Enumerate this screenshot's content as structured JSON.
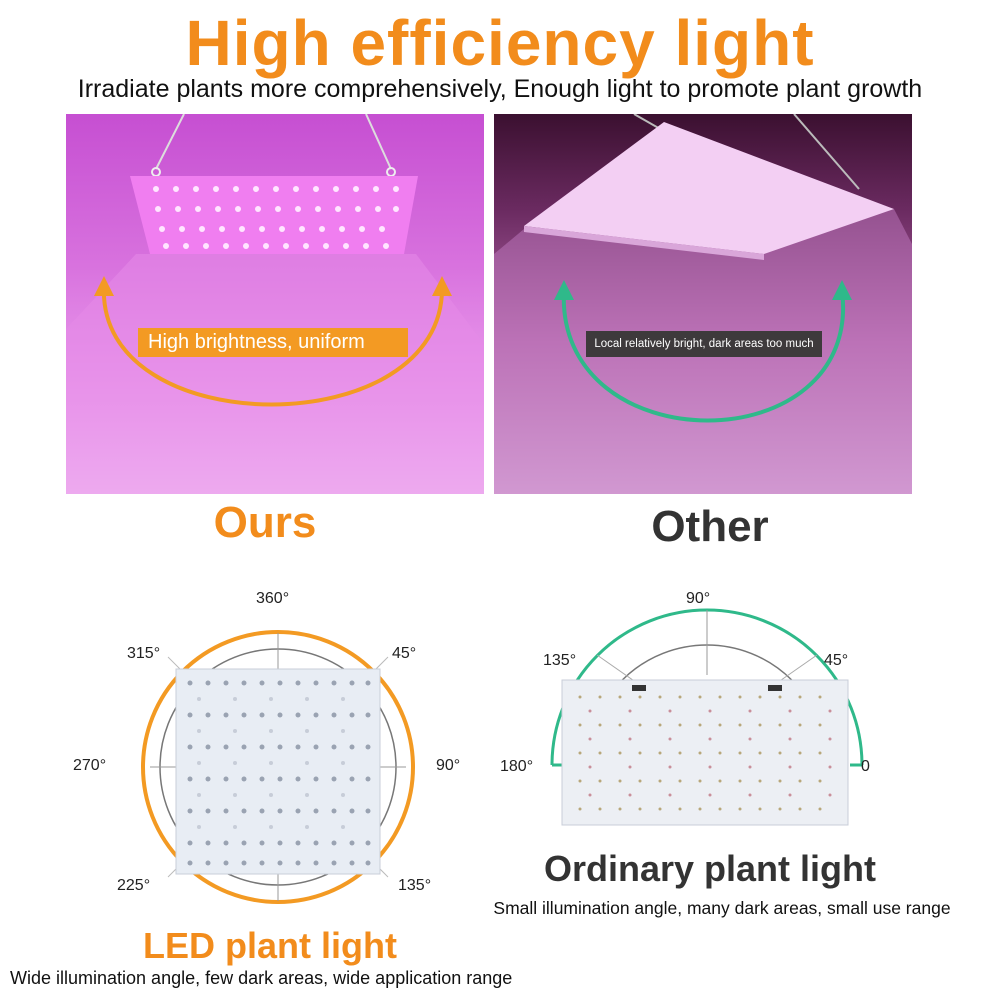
{
  "header": {
    "title": "High efficiency light",
    "subtitle": "Irradiate plants more comprehensively, Enough light to promote plant growth"
  },
  "comparison": {
    "ours": {
      "badge": "High brightness, uniform",
      "label": "Ours"
    },
    "other": {
      "badge": "Local relatively bright, dark areas too much",
      "label": "Other"
    }
  },
  "led_diagram": {
    "angles": {
      "top": "360°",
      "top_right": "45°",
      "right": "90°",
      "bottom_right": "135°",
      "bottom_left": "225°",
      "left": "270°",
      "top_left": "315°"
    },
    "title": "LED plant light",
    "description": "Wide illumination angle, few dark areas, wide application range"
  },
  "ordinary_diagram": {
    "angles": {
      "top": "90°",
      "top_right": "45°",
      "right": "0",
      "top_left": "135°",
      "left": "180°"
    },
    "title": "Ordinary plant light",
    "description": "Small illumination angle, many dark areas, small use range"
  },
  "colors": {
    "accent_orange": "#f28c1c",
    "accent_green": "#2fb98a",
    "dark_text": "#333333"
  }
}
